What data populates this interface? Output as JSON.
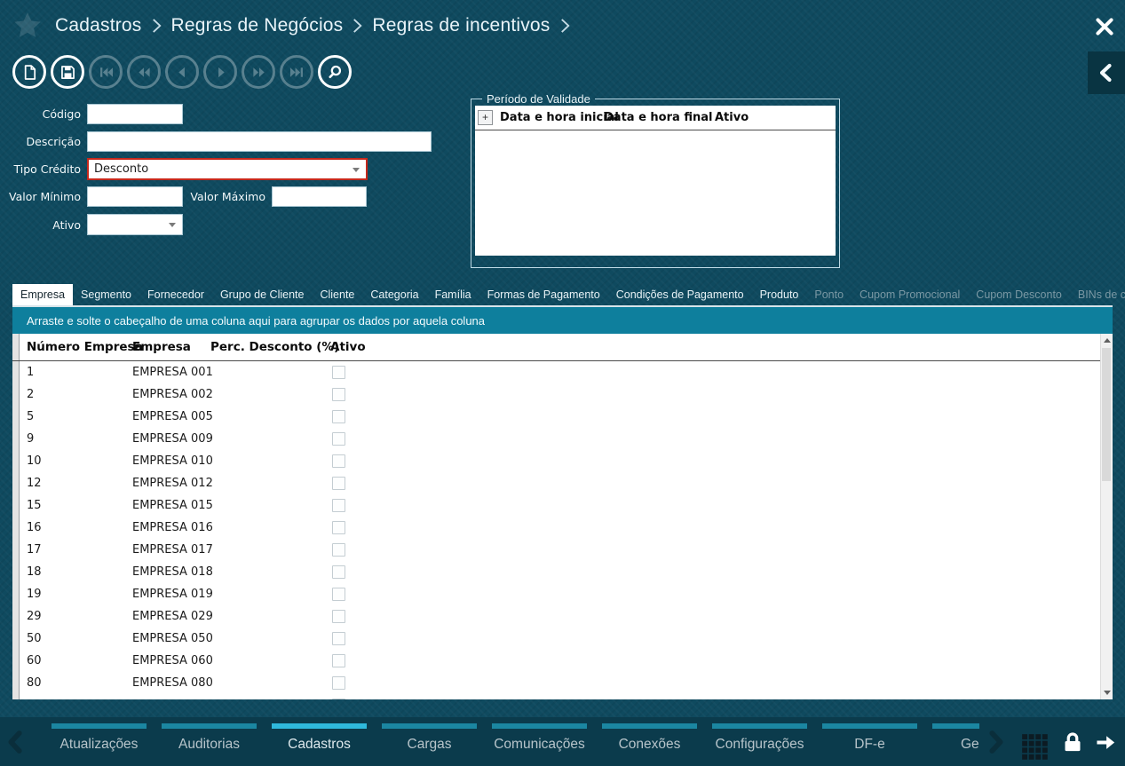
{
  "colors": {
    "background_teal": "#0F4A5F",
    "groupbar_teal": "#0E7F9D",
    "active_nav_cyan": "#2FB9DC",
    "inactive_nav_teal": "#1B86A1",
    "highlight_red": "#C5281C"
  },
  "header": {
    "breadcrumb": [
      "Cadastros",
      "Regras de Negócios",
      "Regras de incentivos"
    ]
  },
  "toolbar": {
    "buttons": [
      {
        "name": "new-record-button",
        "icon": "new-document",
        "state": "enabled"
      },
      {
        "name": "save-button",
        "icon": "save",
        "state": "enabled"
      },
      {
        "name": "first-record-button",
        "icon": "first",
        "state": "disabled"
      },
      {
        "name": "fast-rewind-button",
        "icon": "rewind",
        "state": "disabled"
      },
      {
        "name": "previous-record-button",
        "icon": "prev",
        "state": "disabled"
      },
      {
        "name": "next-record-button",
        "icon": "next",
        "state": "disabled"
      },
      {
        "name": "fast-forward-button",
        "icon": "forward",
        "state": "disabled"
      },
      {
        "name": "last-record-button",
        "icon": "last",
        "state": "disabled"
      },
      {
        "name": "search-button",
        "icon": "search",
        "state": "enabled"
      }
    ]
  },
  "form": {
    "codigo_label": "Código",
    "codigo_value": "",
    "descricao_label": "Descrição",
    "descricao_value": "",
    "tipo_credito_label": "Tipo Crédito",
    "tipo_credito_value": "Desconto",
    "valor_minimo_label": "Valor Mínimo",
    "valor_minimo_value": "",
    "valor_maximo_label": "Valor Máximo",
    "valor_maximo_value": "",
    "ativo_label": "Ativo",
    "ativo_value": ""
  },
  "periodo": {
    "legend": "Período de Validade",
    "add_label": "+",
    "columns": [
      "Data e hora inicial",
      "Data e hora final",
      "Ativo"
    ]
  },
  "tabs": [
    {
      "name": "tab-empresa",
      "label": "Empresa",
      "state": "active"
    },
    {
      "name": "tab-segmento",
      "label": "Segmento",
      "state": "normal"
    },
    {
      "name": "tab-fornecedor",
      "label": "Fornecedor",
      "state": "normal"
    },
    {
      "name": "tab-grupo-de-cliente",
      "label": "Grupo de Cliente",
      "state": "normal"
    },
    {
      "name": "tab-cliente",
      "label": "Cliente",
      "state": "normal"
    },
    {
      "name": "tab-categoria",
      "label": "Categoria",
      "state": "normal"
    },
    {
      "name": "tab-familia",
      "label": "Família",
      "state": "normal"
    },
    {
      "name": "tab-formas-de-pagamento",
      "label": "Formas de Pagamento",
      "state": "normal"
    },
    {
      "name": "tab-condicoes-de-pagamento",
      "label": "Condições de Pagamento",
      "state": "normal"
    },
    {
      "name": "tab-produto",
      "label": "Produto",
      "state": "normal"
    },
    {
      "name": "tab-ponto",
      "label": "Ponto",
      "state": "disabled"
    },
    {
      "name": "tab-cupom-promocional",
      "label": "Cupom Promocional",
      "state": "disabled"
    },
    {
      "name": "tab-cupom-desconto",
      "label": "Cupom Desconto",
      "state": "disabled"
    },
    {
      "name": "tab-bins-de-cartoes",
      "label": "BINs de cartões",
      "state": "disabled"
    }
  ],
  "grid": {
    "group_hint": "Arraste e solte o cabeçalho de uma coluna aqui para agrupar os dados por aquela coluna",
    "columns": [
      "Número Empresa",
      "Empresa",
      "Perc. Desconto (%)",
      "Ativo"
    ],
    "rows": [
      {
        "numero": "1",
        "empresa": "EMPRESA 001",
        "perc": "",
        "ativo": false
      },
      {
        "numero": "2",
        "empresa": "EMPRESA 002",
        "perc": "",
        "ativo": false
      },
      {
        "numero": "5",
        "empresa": "EMPRESA 005",
        "perc": "",
        "ativo": false
      },
      {
        "numero": "9",
        "empresa": "EMPRESA 009",
        "perc": "",
        "ativo": false
      },
      {
        "numero": "10",
        "empresa": "EMPRESA 010",
        "perc": "",
        "ativo": false
      },
      {
        "numero": "12",
        "empresa": "EMPRESA 012",
        "perc": "",
        "ativo": false
      },
      {
        "numero": "15",
        "empresa": "EMPRESA 015",
        "perc": "",
        "ativo": false
      },
      {
        "numero": "16",
        "empresa": "EMPRESA 016",
        "perc": "",
        "ativo": false
      },
      {
        "numero": "17",
        "empresa": "EMPRESA 017",
        "perc": "",
        "ativo": false
      },
      {
        "numero": "18",
        "empresa": "EMPRESA 018",
        "perc": "",
        "ativo": false
      },
      {
        "numero": "19",
        "empresa": "EMPRESA 019",
        "perc": "",
        "ativo": false
      },
      {
        "numero": "29",
        "empresa": "EMPRESA 029",
        "perc": "",
        "ativo": false
      },
      {
        "numero": "50",
        "empresa": "EMPRESA 050",
        "perc": "",
        "ativo": false
      },
      {
        "numero": "60",
        "empresa": "EMPRESA 060",
        "perc": "",
        "ativo": false
      },
      {
        "numero": "80",
        "empresa": "EMPRESA 080",
        "perc": "",
        "ativo": false
      },
      {
        "numero": "",
        "empresa": "",
        "perc": "",
        "ativo": false
      }
    ]
  },
  "bottom_nav": {
    "items": [
      {
        "name": "nav-atualizacoes",
        "label": "Atualizações",
        "state": "normal"
      },
      {
        "name": "nav-auditorias",
        "label": "Auditorias",
        "state": "normal"
      },
      {
        "name": "nav-cadastros",
        "label": "Cadastros",
        "state": "active"
      },
      {
        "name": "nav-cargas",
        "label": "Cargas",
        "state": "normal"
      },
      {
        "name": "nav-comunicacoes",
        "label": "Comunicações",
        "state": "normal"
      },
      {
        "name": "nav-conexoes",
        "label": "Conexões",
        "state": "normal"
      },
      {
        "name": "nav-configuracoes",
        "label": "Configurações",
        "state": "normal"
      },
      {
        "name": "nav-dfe",
        "label": "DF-e",
        "state": "normal"
      },
      {
        "name": "nav-geren",
        "label": "Geren",
        "state": "normal"
      }
    ]
  }
}
